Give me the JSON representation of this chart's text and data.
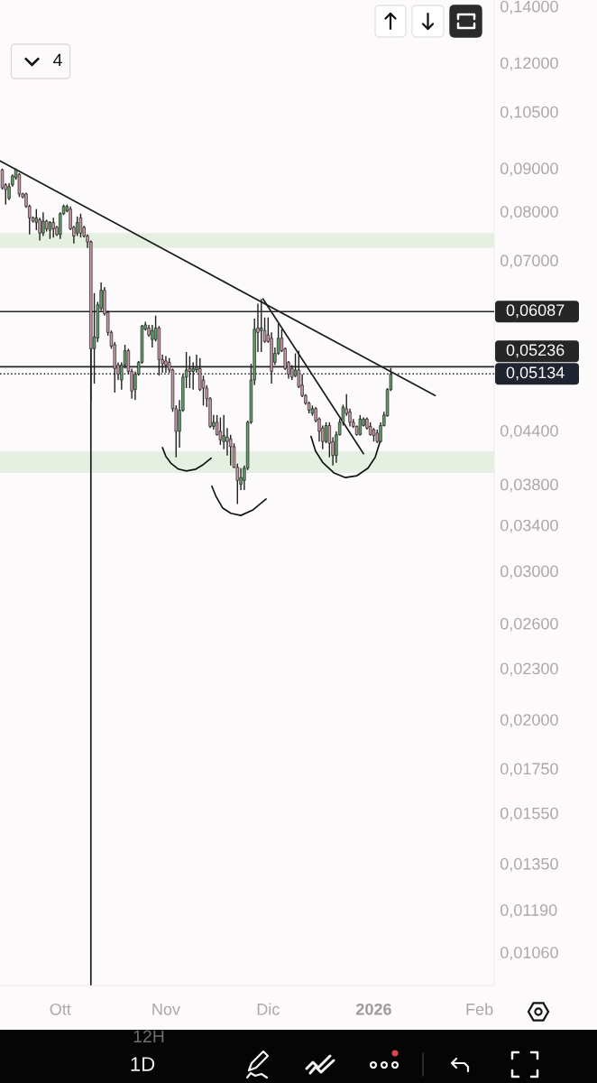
{
  "chart_data": {
    "type": "candlestick",
    "x": [
      "2025-09-14",
      "2025-09-15",
      "2025-09-16",
      "2025-09-17",
      "2025-09-18",
      "2025-09-19",
      "2025-09-20",
      "2025-09-21",
      "2025-09-22",
      "2025-09-23",
      "2025-09-24",
      "2025-09-25",
      "2025-09-26",
      "2025-09-27",
      "2025-09-28",
      "2025-09-29",
      "2025-09-30",
      "2025-10-01",
      "2025-10-02",
      "2025-10-03",
      "2025-10-04",
      "2025-10-05",
      "2025-10-06",
      "2025-10-07",
      "2025-10-08",
      "2025-10-09",
      "2025-10-10",
      "2025-10-11",
      "2025-10-12",
      "2025-10-13",
      "2025-10-14",
      "2025-10-15",
      "2025-10-16",
      "2025-10-17",
      "2025-10-18",
      "2025-10-19",
      "2025-10-20",
      "2025-10-21",
      "2025-10-22",
      "2025-10-23",
      "2025-10-24",
      "2025-10-25",
      "2025-10-26",
      "2025-10-27",
      "2025-10-28",
      "2025-10-29",
      "2025-10-30",
      "2025-10-31",
      "2025-11-01",
      "2025-11-02",
      "2025-11-03",
      "2025-11-04",
      "2025-11-05",
      "2025-11-06",
      "2025-11-07",
      "2025-11-08",
      "2025-11-09",
      "2025-11-10",
      "2025-11-11",
      "2025-11-12",
      "2025-11-13",
      "2025-11-14",
      "2025-11-15",
      "2025-11-16",
      "2025-11-17",
      "2025-11-18",
      "2025-11-19",
      "2025-11-20",
      "2025-11-21",
      "2025-11-22",
      "2025-11-23",
      "2025-11-24",
      "2025-11-25",
      "2025-11-26",
      "2025-11-27",
      "2025-11-28",
      "2025-11-29",
      "2025-11-30",
      "2025-12-01",
      "2025-12-02",
      "2025-12-03",
      "2025-12-04",
      "2025-12-05",
      "2025-12-06",
      "2025-12-07",
      "2025-12-08",
      "2025-12-09",
      "2025-12-10",
      "2025-12-11",
      "2025-12-12",
      "2025-12-13",
      "2025-12-14",
      "2025-12-15",
      "2025-12-16",
      "2025-12-17",
      "2025-12-18",
      "2025-12-19",
      "2025-12-20",
      "2025-12-21",
      "2025-12-22",
      "2025-12-23",
      "2025-12-24",
      "2025-12-25",
      "2025-12-26",
      "2025-12-27",
      "2025-12-28",
      "2025-12-29",
      "2025-12-30",
      "2025-12-31",
      "2026-01-01",
      "2026-01-02",
      "2026-01-03",
      "2026-01-04",
      "2026-01-05",
      "2026-01-06"
    ],
    "ohlc": [
      [
        0.0896,
        0.0899,
        0.0849,
        0.0853
      ],
      [
        0.086,
        0.0864,
        0.0815,
        0.0849
      ],
      [
        0.0829,
        0.0864,
        0.0825,
        0.0856
      ],
      [
        0.086,
        0.0885,
        0.0856,
        0.0881
      ],
      [
        0.0877,
        0.0899,
        0.0872,
        0.0896
      ],
      [
        0.0885,
        0.0888,
        0.0832,
        0.0839
      ],
      [
        0.0839,
        0.0842,
        0.0829,
        0.0832
      ],
      [
        0.0839,
        0.0842,
        0.0808,
        0.0811
      ],
      [
        0.0811,
        0.0815,
        0.0751,
        0.0786
      ],
      [
        0.0786,
        0.0789,
        0.0776,
        0.0779
      ],
      [
        0.0776,
        0.0805,
        0.076,
        0.0786
      ],
      [
        0.0782,
        0.0786,
        0.0739,
        0.0754
      ],
      [
        0.0754,
        0.0798,
        0.0748,
        0.0779
      ],
      [
        0.0779,
        0.0782,
        0.0757,
        0.0763
      ],
      [
        0.076,
        0.0779,
        0.0742,
        0.0776
      ],
      [
        0.0776,
        0.0786,
        0.0745,
        0.0763
      ],
      [
        0.0766,
        0.0769,
        0.0748,
        0.0751
      ],
      [
        0.0751,
        0.0798,
        0.0742,
        0.0795
      ],
      [
        0.0795,
        0.0815,
        0.0792,
        0.0811
      ],
      [
        0.0801,
        0.0815,
        0.0798,
        0.0811
      ],
      [
        0.0805,
        0.0811,
        0.076,
        0.0763
      ],
      [
        0.0766,
        0.0769,
        0.0733,
        0.0748
      ],
      [
        0.0754,
        0.0789,
        0.0748,
        0.0776
      ],
      [
        0.0786,
        0.0795,
        0.0745,
        0.0754
      ],
      [
        0.0766,
        0.0769,
        0.0745,
        0.0748
      ],
      [
        0.0748,
        0.0751,
        0.0724,
        0.0736
      ],
      [
        0.0736,
        0.0739,
        0.0476,
        0.055
      ],
      [
        0.055,
        0.064,
        0.05,
        0.0568
      ],
      [
        0.0566,
        0.0625,
        0.056,
        0.062
      ],
      [
        0.0614,
        0.0659,
        0.061,
        0.0645
      ],
      [
        0.0645,
        0.0651,
        0.0602,
        0.0605
      ],
      [
        0.0607,
        0.061,
        0.057,
        0.0575
      ],
      [
        0.0575,
        0.0578,
        0.055,
        0.0554
      ],
      [
        0.0556,
        0.056,
        0.0488,
        0.0521
      ],
      [
        0.0526,
        0.053,
        0.0505,
        0.0513
      ],
      [
        0.0505,
        0.053,
        0.0492,
        0.0526
      ],
      [
        0.0526,
        0.0556,
        0.0521,
        0.0547
      ],
      [
        0.0547,
        0.055,
        0.0513,
        0.0517
      ],
      [
        0.0517,
        0.0521,
        0.048,
        0.049
      ],
      [
        0.0492,
        0.0517,
        0.0478,
        0.0513
      ],
      [
        0.0513,
        0.0532,
        0.0511,
        0.053
      ],
      [
        0.053,
        0.0587,
        0.0528,
        0.0585
      ],
      [
        0.058,
        0.0592,
        0.0578,
        0.0587
      ],
      [
        0.0582,
        0.0587,
        0.0568,
        0.0571
      ],
      [
        0.0564,
        0.0587,
        0.0552,
        0.0578
      ],
      [
        0.0564,
        0.0602,
        0.0561,
        0.0582
      ],
      [
        0.0582,
        0.0585,
        0.0511,
        0.0534
      ],
      [
        0.0534,
        0.0541,
        0.0515,
        0.0528
      ],
      [
        0.0532,
        0.0539,
        0.0515,
        0.0526
      ],
      [
        0.053,
        0.0536,
        0.0515,
        0.0519
      ],
      [
        0.0519,
        0.0521,
        0.0463,
        0.0467
      ],
      [
        0.0467,
        0.0471,
        0.0409,
        0.0439
      ],
      [
        0.0439,
        0.0478,
        0.042,
        0.0465
      ],
      [
        0.0465,
        0.0513,
        0.0463,
        0.0509
      ],
      [
        0.0509,
        0.0545,
        0.0494,
        0.0519
      ],
      [
        0.0521,
        0.0539,
        0.0494,
        0.0517
      ],
      [
        0.0517,
        0.053,
        0.0492,
        0.0521
      ],
      [
        0.0519,
        0.0541,
        0.0515,
        0.0523
      ],
      [
        0.0521,
        0.0536,
        0.049,
        0.0492
      ],
      [
        0.0505,
        0.0511,
        0.0471,
        0.0494
      ],
      [
        0.0494,
        0.0498,
        0.0469,
        0.048
      ],
      [
        0.048,
        0.0482,
        0.0443,
        0.0445
      ],
      [
        0.0445,
        0.0459,
        0.0441,
        0.045
      ],
      [
        0.045,
        0.0459,
        0.0434,
        0.0435
      ],
      [
        0.0439,
        0.0456,
        0.0423,
        0.0429
      ],
      [
        0.0427,
        0.0459,
        0.0418,
        0.0434
      ],
      [
        0.0432,
        0.0443,
        0.0411,
        0.0427
      ],
      [
        0.043,
        0.0435,
        0.04,
        0.0421
      ],
      [
        0.0421,
        0.0425,
        0.0397,
        0.0398
      ],
      [
        0.0398,
        0.0402,
        0.036,
        0.0384
      ],
      [
        0.038,
        0.0397,
        0.0374,
        0.0387
      ],
      [
        0.0384,
        0.04,
        0.0374,
        0.0397
      ],
      [
        0.0397,
        0.0452,
        0.0395,
        0.045
      ],
      [
        0.045,
        0.0528,
        0.0448,
        0.0505
      ],
      [
        0.0505,
        0.0597,
        0.0498,
        0.058
      ],
      [
        0.0582,
        0.0622,
        0.0545,
        0.0575
      ],
      [
        0.0578,
        0.063,
        0.0545,
        0.0582
      ],
      [
        0.0578,
        0.0599,
        0.0559,
        0.0561
      ],
      [
        0.0571,
        0.0599,
        0.0559,
        0.0561
      ],
      [
        0.0566,
        0.0575,
        0.05,
        0.0517
      ],
      [
        0.053,
        0.0552,
        0.0526,
        0.0543
      ],
      [
        0.0543,
        0.0589,
        0.0541,
        0.0566
      ],
      [
        0.0566,
        0.058,
        0.0545,
        0.0547
      ],
      [
        0.055,
        0.0552,
        0.0519,
        0.0521
      ],
      [
        0.053,
        0.0532,
        0.0507,
        0.0513
      ],
      [
        0.0521,
        0.0526,
        0.0505,
        0.0509
      ],
      [
        0.0511,
        0.0543,
        0.0509,
        0.0519
      ],
      [
        0.0519,
        0.0547,
        0.0494,
        0.0496
      ],
      [
        0.0498,
        0.0513,
        0.0482,
        0.0484
      ],
      [
        0.0484,
        0.0486,
        0.0472,
        0.0474
      ],
      [
        0.0474,
        0.0476,
        0.0461,
        0.0465
      ],
      [
        0.0461,
        0.0471,
        0.0458,
        0.0467
      ],
      [
        0.0467,
        0.0469,
        0.045,
        0.0452
      ],
      [
        0.0454,
        0.0456,
        0.0427,
        0.0439
      ],
      [
        0.0443,
        0.0446,
        0.0418,
        0.0427
      ],
      [
        0.0427,
        0.045,
        0.0425,
        0.0446
      ],
      [
        0.0446,
        0.045,
        0.0409,
        0.0425
      ],
      [
        0.0427,
        0.0432,
        0.04,
        0.0411
      ],
      [
        0.0411,
        0.0439,
        0.0403,
        0.0435
      ],
      [
        0.0435,
        0.0454,
        0.0434,
        0.045
      ],
      [
        0.045,
        0.0472,
        0.0446,
        0.0469
      ],
      [
        0.0467,
        0.0486,
        0.0458,
        0.0461
      ],
      [
        0.0463,
        0.0467,
        0.0445,
        0.045
      ],
      [
        0.045,
        0.0454,
        0.0443,
        0.0445
      ],
      [
        0.0445,
        0.0446,
        0.0434,
        0.0435
      ],
      [
        0.0435,
        0.0459,
        0.0434,
        0.0454
      ],
      [
        0.0446,
        0.0456,
        0.0445,
        0.0454
      ],
      [
        0.0454,
        0.0456,
        0.0441,
        0.0443
      ],
      [
        0.0445,
        0.045,
        0.0434,
        0.0435
      ],
      [
        0.0441,
        0.0443,
        0.0427,
        0.0434
      ],
      [
        0.0437,
        0.0441,
        0.0425,
        0.0427
      ],
      [
        0.0427,
        0.045,
        0.0426,
        0.0446
      ],
      [
        0.0446,
        0.0463,
        0.0445,
        0.0459
      ],
      [
        0.0458,
        0.0494,
        0.0457,
        0.0492
      ],
      [
        0.0492,
        0.0522,
        0.049,
        0.0513
      ]
    ],
    "colors": [
      "#c99aa3",
      "#c99aa3",
      "#62a06a",
      "#62a06a",
      "#62a06a",
      "#c99aa3",
      "#c99aa3",
      "#c99aa3",
      "#c99aa3",
      "#c99aa3",
      "#62a06a",
      "#c99aa3",
      "#62a06a",
      "#c99aa3",
      "#62a06a",
      "#c99aa3",
      "#c99aa3",
      "#62a06a",
      "#62a06a",
      "#62a06a",
      "#c99aa3",
      "#c99aa3",
      "#62a06a",
      "#c99aa3",
      "#c99aa3",
      "#c99aa3",
      "#c99aa3",
      "#62a06a",
      "#62a06a",
      "#62a06a",
      "#c99aa3",
      "#c99aa3",
      "#c99aa3",
      "#c99aa3",
      "#c99aa3",
      "#62a06a",
      "#62a06a",
      "#c99aa3",
      "#c99aa3",
      "#62a06a",
      "#62a06a",
      "#62a06a",
      "#62a06a",
      "#c99aa3",
      "#62a06a",
      "#62a06a",
      "#c99aa3",
      "#c99aa3",
      "#c99aa3",
      "#c99aa3",
      "#c99aa3",
      "#c99aa3",
      "#62a06a",
      "#62a06a",
      "#62a06a",
      "#c99aa3",
      "#62a06a",
      "#62a06a",
      "#c99aa3",
      "#c99aa3",
      "#c99aa3",
      "#c99aa3",
      "#62a06a",
      "#c99aa3",
      "#c99aa3",
      "#62a06a",
      "#c99aa3",
      "#c99aa3",
      "#c99aa3",
      "#c99aa3",
      "#62a06a",
      "#62a06a",
      "#62a06a",
      "#62a06a",
      "#62a06a",
      "#c99aa3",
      "#62a06a",
      "#c99aa3",
      "#c99aa3",
      "#c99aa3",
      "#62a06a",
      "#62a06a",
      "#c99aa3",
      "#c99aa3",
      "#c99aa3",
      "#c99aa3",
      "#62a06a",
      "#c99aa3",
      "#c99aa3",
      "#c99aa3",
      "#c99aa3",
      "#62a06a",
      "#c99aa3",
      "#c99aa3",
      "#c99aa3",
      "#62a06a",
      "#c99aa3",
      "#c99aa3",
      "#62a06a",
      "#62a06a",
      "#62a06a",
      "#c99aa3",
      "#c99aa3",
      "#c99aa3",
      "#c99aa3",
      "#62a06a",
      "#62a06a",
      "#c99aa3",
      "#c99aa3",
      "#c99aa3",
      "#c99aa3",
      "#62a06a",
      "#62a06a",
      "#62a06a",
      "#62a06a"
    ],
    "series": [
      {
        "type": "line",
        "x": [
          "2025-09-13T08:00",
          "2026-01-19"
        ],
        "values": [
          0.0918,
          0.0484
        ],
        "color": "#1a1a1a"
      },
      {
        "type": "line",
        "x": [
          "2025-11-29T12:00",
          "2025-12-29"
        ],
        "values": [
          0.063,
          0.0413
        ],
        "color": "#1a1a1a"
      },
      {
        "type": "line",
        "x": [
          "2025-10-10",
          "2025-10-10"
        ],
        "values": [
          0.0736,
          0.0097
        ],
        "color": "#1a1a1a"
      },
      {
        "type": "line",
        "x": [
          "2025-10-31",
          "2025-11-01",
          "2025-11-02T14:00",
          "2025-11-04T17:00",
          "2025-11-07",
          "2025-11-09T19:00",
          "2025-11-12",
          "2025-11-14T07:00"
        ],
        "values": [
          0.042,
          0.041,
          0.0402,
          0.0396,
          0.0394,
          0.0396,
          0.0401,
          0.0408
        ],
        "color": "#111111"
      },
      {
        "type": "line",
        "x": [
          "2025-11-14T12:00",
          "2025-11-15T19:00",
          "2025-11-17T17:00",
          "2025-11-20T02:00",
          "2025-11-23",
          "2025-11-26T10:00",
          "2025-11-30T10:00"
        ],
        "values": [
          0.0378,
          0.0367,
          0.0356,
          0.0351,
          0.0349,
          0.0354,
          0.0365
        ],
        "color": "#111111"
      },
      {
        "type": "line",
        "x": [
          "2025-12-13T14:00",
          "2025-12-14T22:00",
          "2025-12-17T02:00",
          "2025-12-20T07:00",
          "2025-12-23T17:00",
          "2025-12-27T02:00",
          "2025-12-30T07:00",
          "2026-01-01T10:00",
          "2026-01-03"
        ],
        "values": [
          0.0433,
          0.0416,
          0.0403,
          0.0392,
          0.0387,
          0.0389,
          0.0397,
          0.0409,
          0.0429
        ],
        "color": "#111111"
      }
    ],
    "ref_lines": [
      {
        "axis": "y",
        "value": 0.06087,
        "label": "0,06087",
        "color": "#262626"
      },
      {
        "axis": "y",
        "value": 0.05236,
        "label": "0,05236",
        "color": "#262626"
      },
      {
        "axis": "y",
        "value": 0.05134,
        "label": "0,05134",
        "color": "#1f2430",
        "line_style": "dotted"
      }
    ],
    "bands": [
      {
        "axis": "y",
        "from": 0.0724,
        "to": 0.0754,
        "color": "#e5efe2"
      },
      {
        "axis": "y",
        "from": 0.0392,
        "to": 0.0416,
        "color": "#e5efe2"
      }
    ],
    "xlim": [
      "2025-09-13T08:00",
      "2026-02-05T08:00"
    ],
    "ylim": [
      0.00968,
      0.1424
    ],
    "log": true,
    "xticks": [
      {
        "value": "2025-10-01",
        "label": "Ott"
      },
      {
        "value": "2025-11-01",
        "label": "Nov"
      },
      {
        "value": "2025-12-01",
        "label": "Dic"
      },
      {
        "value": "2026-01-01",
        "label": "2026"
      },
      {
        "value": "2026-02-01",
        "label": "Feb"
      }
    ],
    "yticks": [
      {
        "value": 0.14,
        "label": "0,14000"
      },
      {
        "value": 0.12,
        "label": "0,12000"
      },
      {
        "value": 0.105,
        "label": "0,10500"
      },
      {
        "value": 0.09,
        "label": "0,09000"
      },
      {
        "value": 0.08,
        "label": "0,08000"
      },
      {
        "value": 0.07,
        "label": "0,07000"
      },
      {
        "value": 0.044,
        "label": "0,04400"
      },
      {
        "value": 0.038,
        "label": "0,03800"
      },
      {
        "value": 0.034,
        "label": "0,03400"
      },
      {
        "value": 0.03,
        "label": "0,03000"
      },
      {
        "value": 0.026,
        "label": "0,02600"
      },
      {
        "value": 0.023,
        "label": "0,02300"
      },
      {
        "value": 0.02,
        "label": "0,02000"
      },
      {
        "value": 0.0175,
        "label": "0,01750"
      },
      {
        "value": 0.0155,
        "label": "0,01550"
      },
      {
        "value": 0.0135,
        "label": "0,01350"
      },
      {
        "value": 0.0119,
        "label": "0,01190"
      },
      {
        "value": 0.0106,
        "label": "0,01060"
      }
    ],
    "annotations": [
      "4",
      "12H",
      "1D"
    ]
  }
}
